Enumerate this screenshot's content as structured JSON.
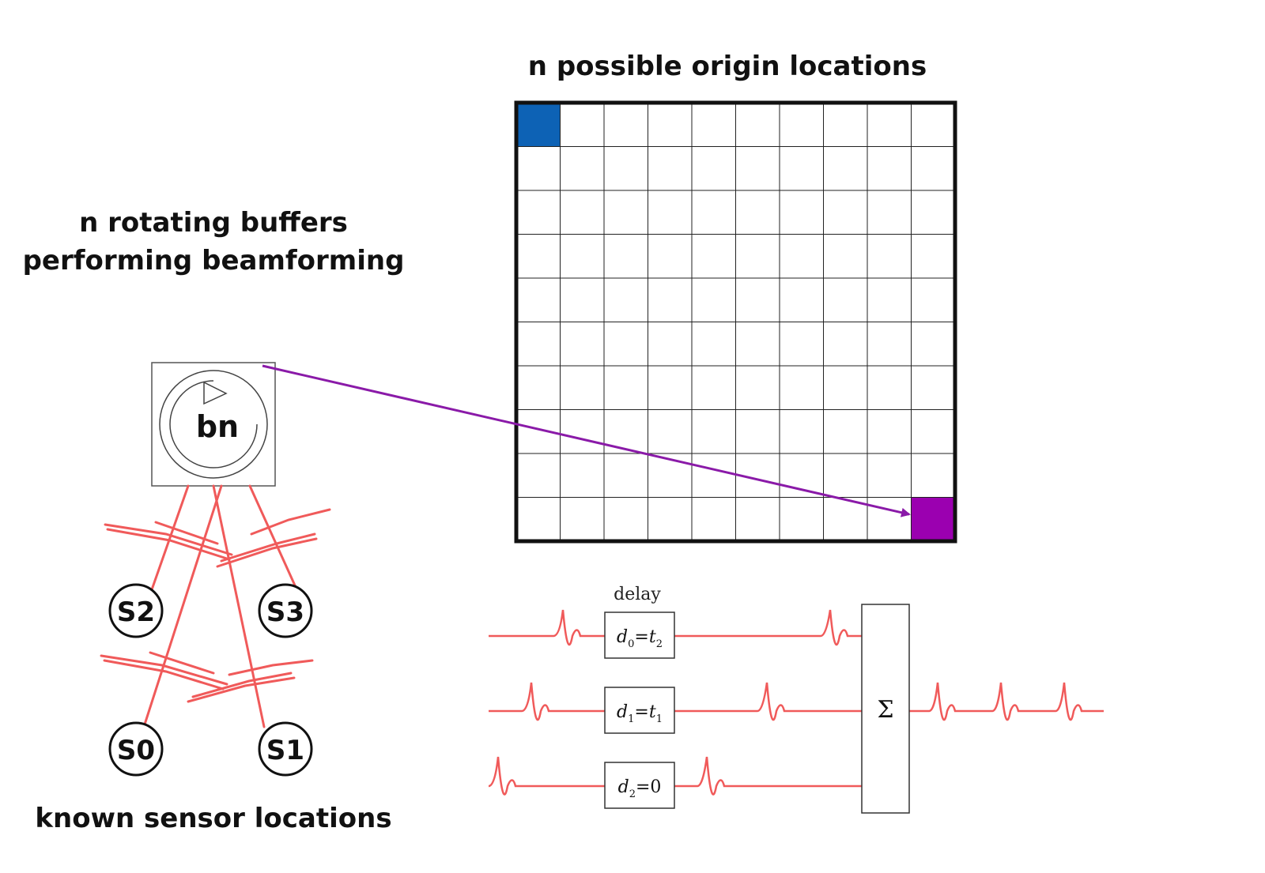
{
  "headings": {
    "grid_title": "n possible origin locations",
    "buffers_line1": "n rotating buffers",
    "buffers_line2": "performing beamforming",
    "sensors": "known sensor locations"
  },
  "buffer": {
    "label": "bn"
  },
  "sensors": [
    {
      "id": "S2",
      "label": "S2"
    },
    {
      "id": "S3",
      "label": "S3"
    },
    {
      "id": "S0",
      "label": "S0"
    },
    {
      "id": "S1",
      "label": "S1"
    }
  ],
  "grid": {
    "rows": 10,
    "cols": 10,
    "highlight_blue": {
      "row": 0,
      "col": 0,
      "color": "#0d62b5"
    },
    "highlight_purple": {
      "row": 9,
      "col": 9,
      "color": "#9b00b0"
    }
  },
  "delay_diagram": {
    "header": "delay",
    "boxes": [
      {
        "var": "d",
        "sub": "0",
        "eq": "=",
        "rhs": "t",
        "rhs_sub": "2"
      },
      {
        "var": "d",
        "sub": "1",
        "eq": "=",
        "rhs": "t",
        "rhs_sub": "1"
      },
      {
        "var": "d",
        "sub": "2",
        "eq": "=",
        "rhs": "0",
        "rhs_sub": ""
      }
    ],
    "sum_symbol": "Σ"
  },
  "colors": {
    "signal": "#f05a5a",
    "arrow": "#8a1aa8",
    "outline": "#111111"
  }
}
